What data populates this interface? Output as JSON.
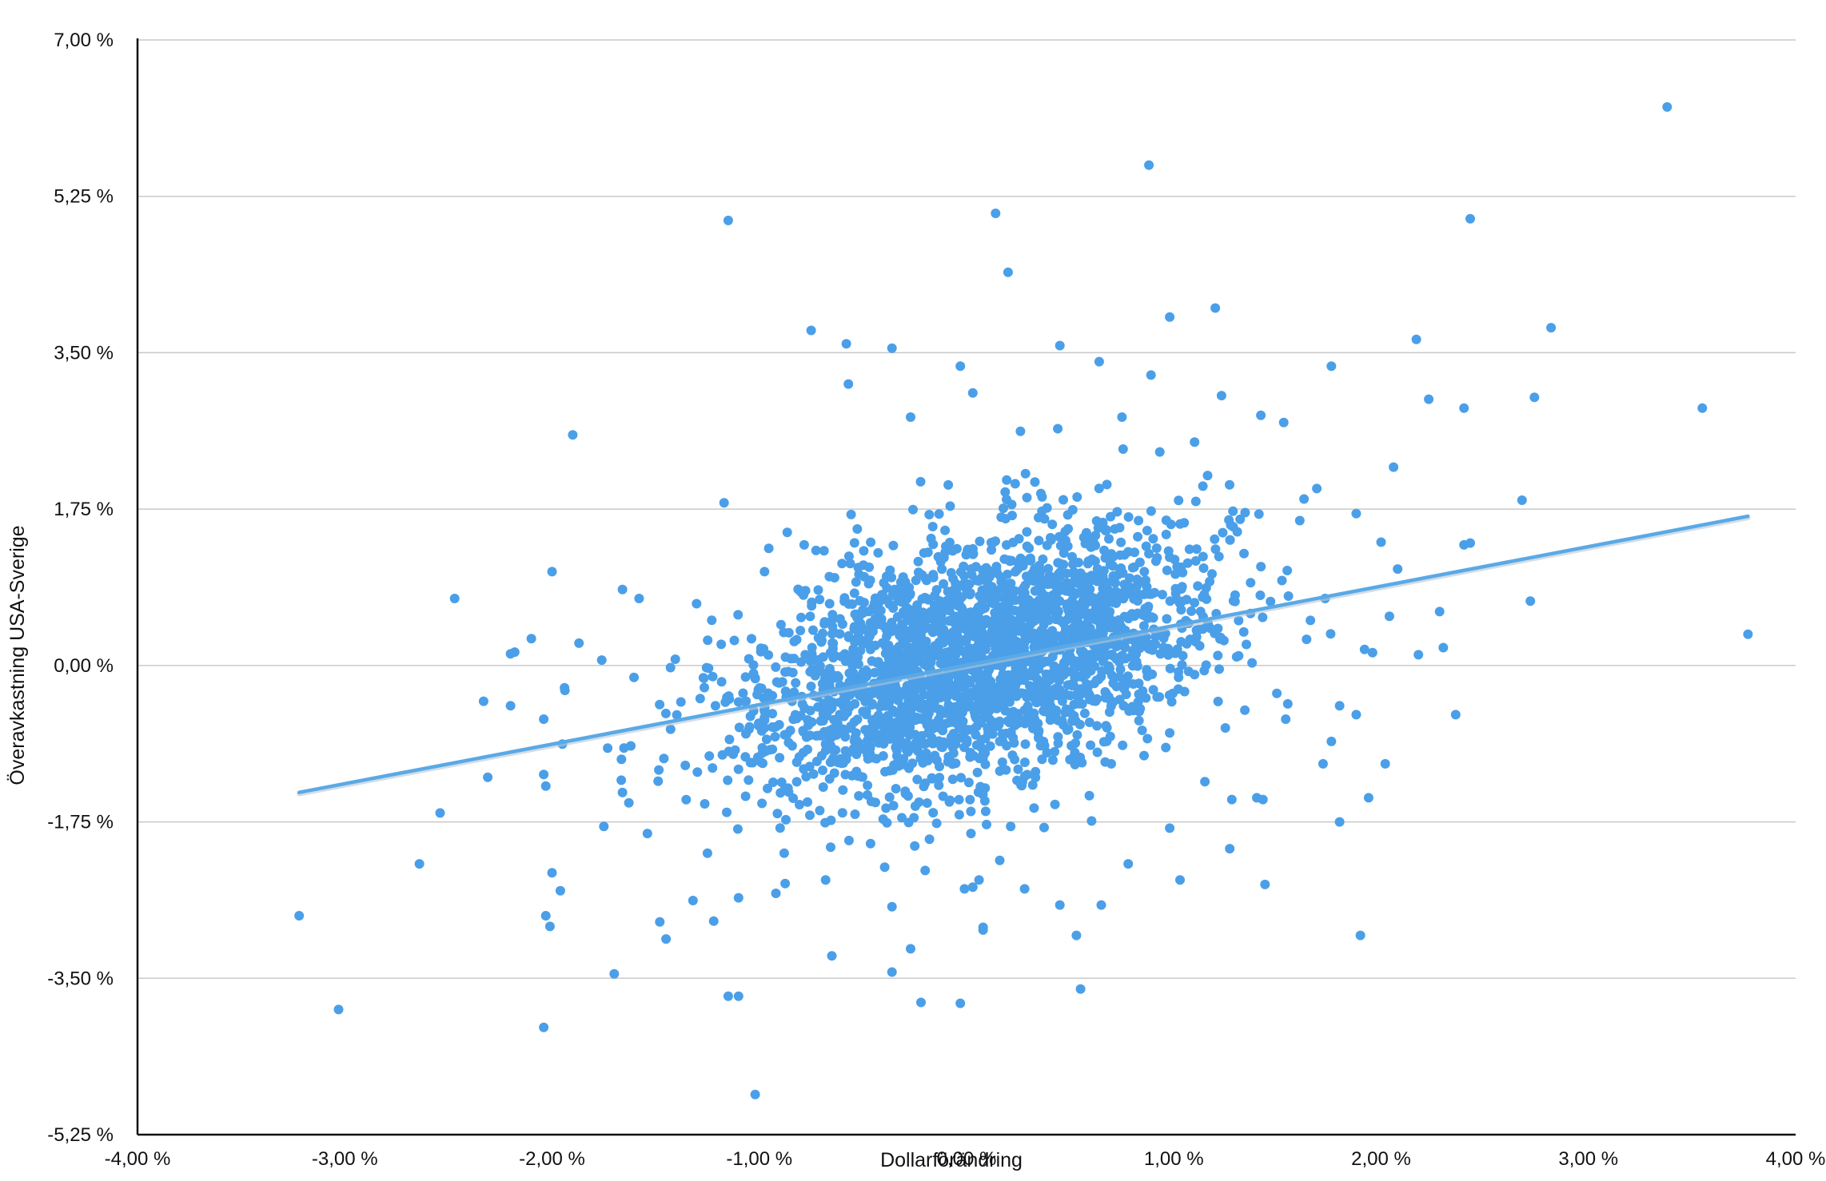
{
  "colors": {
    "point": "#4a9fe8",
    "trend": "#5aa9e6",
    "grid": "#c9c9c9",
    "axis": "#111111"
  },
  "chart_data": {
    "type": "scatter",
    "xlabel": "Dollarförändring",
    "ylabel": "Överavkastning USA-Sverige",
    "xlim": [
      -4.0,
      4.0
    ],
    "ylim": [
      -5.25,
      7.0
    ],
    "x_ticks": [
      "-4,00 %",
      "-3,00 %",
      "-2,00 %",
      "-1,00 %",
      "0,00 %",
      "1,00 %",
      "2,00 %",
      "3,00 %",
      "4,00 %"
    ],
    "y_ticks": [
      "-5,25 %",
      "-3,50 %",
      "-1,75 %",
      "0,00 %",
      "1,75 %",
      "3,50 %",
      "5,25 %",
      "7,00 %"
    ],
    "grid": "horizontal",
    "trendline": {
      "x": [
        -3.22,
        3.77
      ],
      "y": [
        -1.42,
        1.67
      ]
    },
    "outliers": [
      [
        3.38,
        6.25
      ],
      [
        0.88,
        5.6
      ],
      [
        -1.15,
        4.98
      ],
      [
        0.14,
        5.06
      ],
      [
        2.43,
        5.0
      ],
      [
        0.2,
        4.4
      ],
      [
        1.2,
        4.0
      ],
      [
        0.98,
        3.9
      ],
      [
        -0.75,
        3.75
      ],
      [
        -0.58,
        3.6
      ],
      [
        -0.36,
        3.55
      ],
      [
        0.45,
        3.58
      ],
      [
        0.64,
        3.4
      ],
      [
        -0.03,
        3.35
      ],
      [
        1.76,
        3.35
      ],
      [
        2.17,
        3.65
      ],
      [
        2.82,
        3.78
      ],
      [
        0.89,
        3.25
      ],
      [
        -0.57,
        3.15
      ],
      [
        0.03,
        3.05
      ],
      [
        2.23,
        2.98
      ],
      [
        2.74,
        3.0
      ],
      [
        3.55,
        2.88
      ],
      [
        2.4,
        2.88
      ],
      [
        1.23,
        3.02
      ],
      [
        -1.9,
        2.58
      ],
      [
        -0.27,
        2.78
      ],
      [
        0.26,
        2.62
      ],
      [
        0.44,
        2.65
      ],
      [
        1.42,
        2.8
      ],
      [
        1.53,
        2.72
      ],
      [
        0.75,
        2.78
      ],
      [
        1.1,
        2.5
      ],
      [
        2.06,
        2.22
      ],
      [
        -1.17,
        1.82
      ],
      [
        1.69,
        1.98
      ],
      [
        2.68,
        1.85
      ],
      [
        1.88,
        1.7
      ],
      [
        2.0,
        1.38
      ],
      [
        2.4,
        1.35
      ],
      [
        2.43,
        1.37
      ],
      [
        2.08,
        1.08
      ],
      [
        -2.0,
        1.05
      ],
      [
        -2.47,
        0.75
      ],
      [
        -1.66,
        0.85
      ],
      [
        -1.58,
        0.75
      ],
      [
        2.72,
        0.72
      ],
      [
        2.04,
        0.55
      ],
      [
        1.73,
        0.75
      ],
      [
        -2.18,
        0.15
      ],
      [
        -2.2,
        0.13
      ],
      [
        -2.1,
        0.3
      ],
      [
        -1.94,
        -0.25
      ],
      [
        -1.87,
        0.25
      ],
      [
        -1.76,
        0.06
      ],
      [
        -2.33,
        -0.4
      ],
      [
        -2.2,
        -0.45
      ],
      [
        -2.04,
        -0.6
      ],
      [
        -1.95,
        -0.88
      ],
      [
        -1.62,
        -0.9
      ],
      [
        -2.31,
        -1.25
      ],
      [
        -2.04,
        -1.22
      ],
      [
        -2.03,
        -1.35
      ],
      [
        -2.54,
        -1.65
      ],
      [
        -1.66,
        -1.42
      ],
      [
        -1.75,
        -1.8
      ],
      [
        -1.54,
        -1.88
      ],
      [
        -2.64,
        -2.22
      ],
      [
        -2.0,
        -2.32
      ],
      [
        -1.96,
        -2.52
      ],
      [
        -3.22,
        -2.8
      ],
      [
        -2.03,
        -2.8
      ],
      [
        -2.01,
        -2.92
      ],
      [
        -1.48,
        -2.87
      ],
      [
        -1.45,
        -3.06
      ],
      [
        -1.7,
        -3.45
      ],
      [
        -3.03,
        -3.85
      ],
      [
        -2.04,
        -4.05
      ],
      [
        -1.15,
        -3.7
      ],
      [
        -1.1,
        -3.7
      ],
      [
        -1.02,
        -4.8
      ],
      [
        -1.32,
        -2.63
      ],
      [
        -1.22,
        -2.86
      ],
      [
        -0.36,
        -2.7
      ],
      [
        -0.27,
        -3.17
      ],
      [
        -0.36,
        -3.43
      ],
      [
        -0.22,
        -3.77
      ],
      [
        -0.03,
        -3.78
      ],
      [
        0.55,
        -3.62
      ],
      [
        0.53,
        -3.02
      ],
      [
        -0.65,
        -3.25
      ],
      [
        0.08,
        -2.93
      ],
      [
        0.08,
        -2.96
      ],
      [
        0.06,
        -2.4
      ],
      [
        -0.01,
        -2.5
      ],
      [
        0.03,
        -2.48
      ],
      [
        0.28,
        -2.5
      ],
      [
        0.45,
        -2.68
      ],
      [
        0.65,
        -2.68
      ],
      [
        0.16,
        -2.18
      ],
      [
        -0.68,
        -2.4
      ],
      [
        -0.92,
        -2.55
      ],
      [
        -1.1,
        -2.6
      ],
      [
        -1.25,
        -2.1
      ],
      [
        -0.88,
        -2.1
      ],
      [
        -0.25,
        -2.02
      ],
      [
        0.78,
        -2.22
      ],
      [
        1.03,
        -2.4
      ],
      [
        1.27,
        -2.05
      ],
      [
        1.44,
        -2.45
      ],
      [
        1.9,
        -3.02
      ],
      [
        1.94,
        -1.48
      ],
      [
        2.02,
        -1.1
      ],
      [
        1.8,
        -1.75
      ],
      [
        2.36,
        -0.55
      ],
      [
        3.77,
        0.35
      ],
      [
        1.88,
        -0.55
      ],
      [
        1.8,
        -0.45
      ],
      [
        1.72,
        -1.1
      ],
      [
        1.76,
        -0.85
      ],
      [
        1.28,
        -1.5
      ],
      [
        1.4,
        -1.48
      ],
      [
        0.98,
        -1.82
      ],
      [
        1.55,
        -0.43
      ],
      [
        1.54,
        -0.6
      ],
      [
        1.43,
        -1.5
      ],
      [
        1.15,
        -1.3
      ],
      [
        1.92,
        0.18
      ],
      [
        2.3,
        0.2
      ],
      [
        2.18,
        0.12
      ]
    ],
    "cluster": {
      "n": 2600,
      "seed": 20240611,
      "mean": [
        0.05,
        0.05
      ],
      "sd": [
        0.55,
        0.72
      ],
      "corr": 0.38
    }
  }
}
